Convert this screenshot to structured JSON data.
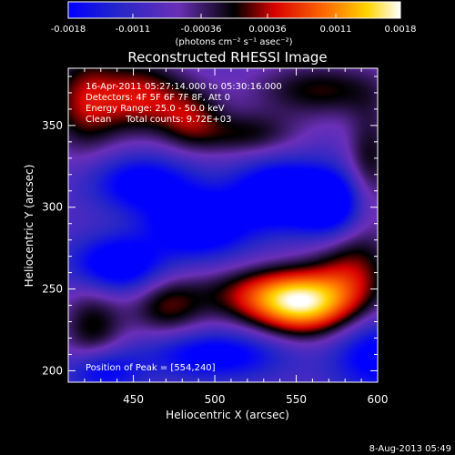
{
  "colorbar": {
    "tick_labels": [
      "-0.0018",
      "-0.0011",
      "-0.00036",
      "0.00036",
      "0.0011",
      "0.0018"
    ],
    "tick_values": [
      -0.0018,
      -0.0011,
      -0.00036,
      0.00036,
      0.0011,
      0.0018
    ],
    "range": [
      -0.0018,
      0.0018
    ],
    "units_label": "(photons cm⁻² s⁻¹ asec⁻²)",
    "colors": [
      "#0000ff",
      "#2020c0",
      "#6a30b8",
      "#000000",
      "#e00000",
      "#ff6000",
      "#ffd000",
      "#ffffff"
    ]
  },
  "chart_data": {
    "type": "heatmap",
    "title": "Reconstructed RHESSI Image",
    "xlabel": "Heliocentric X (arcsec)",
    "ylabel": "Heliocentric Y (arcsec)",
    "xlim": [
      410,
      600
    ],
    "ylim": [
      193,
      385
    ],
    "x_ticks": [
      450,
      500,
      550,
      600
    ],
    "y_ticks": [
      200,
      250,
      300,
      350
    ],
    "grid": false,
    "info_lines": [
      "16-Apr-2011 05:27:14.000 to 05:30:16.000",
      "Detectors: 4F 5F 6F 7F 8F, Att 0",
      "Energy Range: 25.0 - 50.0 keV",
      "Clean     Total counts: 9.72E+03"
    ],
    "peak_label": "Position of Peak = [554,240]",
    "peak": [
      554,
      240
    ],
    "sources": [
      {
        "x": 554,
        "y": 240,
        "sx": 22,
        "sy": 14,
        "amp": 0.00185
      },
      {
        "x": 530,
        "y": 247,
        "sx": 30,
        "sy": 12,
        "amp": 0.0011
      },
      {
        "x": 585,
        "y": 262,
        "sx": 18,
        "sy": 20,
        "amp": 0.001
      },
      {
        "x": 470,
        "y": 240,
        "sx": 16,
        "sy": 14,
        "amp": 0.0009
      },
      {
        "x": 425,
        "y": 225,
        "sx": 14,
        "sy": 22,
        "amp": 0.0009
      },
      {
        "x": 420,
        "y": 365,
        "sx": 16,
        "sy": 22,
        "amp": 0.00115
      },
      {
        "x": 455,
        "y": 368,
        "sx": 18,
        "sy": 16,
        "amp": 0.0012
      },
      {
        "x": 485,
        "y": 355,
        "sx": 14,
        "sy": 14,
        "amp": 0.0009
      },
      {
        "x": 520,
        "y": 345,
        "sx": 22,
        "sy": 10,
        "amp": 0.0008
      },
      {
        "x": 565,
        "y": 372,
        "sx": 30,
        "sy": 12,
        "amp": 0.0009
      },
      {
        "x": 595,
        "y": 330,
        "sx": 10,
        "sy": 22,
        "amp": 0.0008
      },
      {
        "x": 490,
        "y": 290,
        "sx": 22,
        "sy": 14,
        "amp": -0.0016
      },
      {
        "x": 540,
        "y": 308,
        "sx": 20,
        "sy": 14,
        "amp": -0.0017
      },
      {
        "x": 570,
        "y": 302,
        "sx": 14,
        "sy": 14,
        "amp": -0.0015
      },
      {
        "x": 440,
        "y": 265,
        "sx": 20,
        "sy": 12,
        "amp": -0.0015
      },
      {
        "x": 455,
        "y": 315,
        "sx": 22,
        "sy": 12,
        "amp": -0.0012
      },
      {
        "x": 500,
        "y": 210,
        "sx": 30,
        "sy": 10,
        "amp": -0.0012
      },
      {
        "x": 600,
        "y": 210,
        "sx": 20,
        "sy": 16,
        "amp": -0.0012
      },
      {
        "x": 430,
        "y": 200,
        "sx": 16,
        "sy": 10,
        "amp": -0.0012
      }
    ]
  },
  "footer": {
    "timestamp": "8-Aug-2013 05:49"
  }
}
